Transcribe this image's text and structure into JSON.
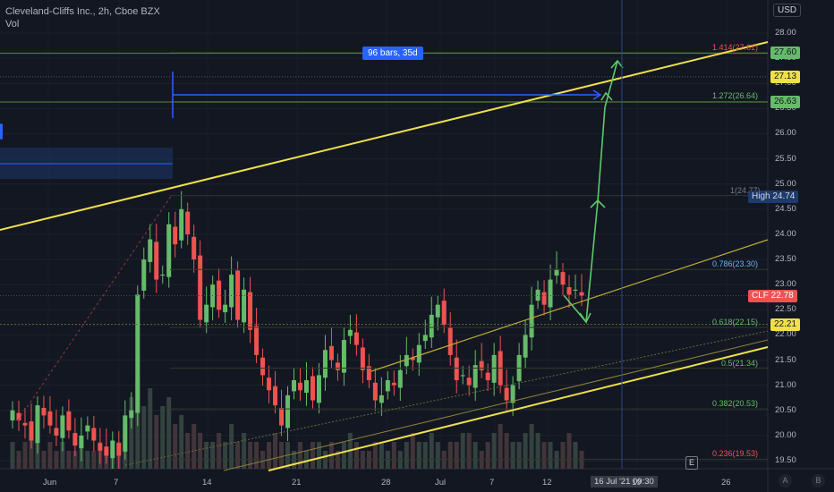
{
  "legend": {
    "symbol_line": "Cleveland-Cliffs Inc., 2h, Cboe BZX",
    "vol_line": "Vol"
  },
  "currency": "USD",
  "measure_badge": "96 bars, 35d",
  "e_marker": "E",
  "corner_buttons": [
    "A",
    "B"
  ],
  "crosshair_time": [
    "16 Jul '21",
    "09:30"
  ],
  "colors": {
    "background": "#131722",
    "up": "#26a69a",
    "up_vol": "#1e5d3a",
    "down": "#ef5350",
    "down_vol": "#6b2323",
    "channel": "#f0e04a",
    "fib_line": "#4c7a3a",
    "measure": "#2962ff",
    "arrow": "#5dc96a"
  },
  "price_tags": [
    {
      "label": "27.60",
      "price": 27.6,
      "bg": "#66bb6a",
      "fg": "#131722"
    },
    {
      "label": "27.13",
      "price": 27.13,
      "bg": "#f0e04a",
      "fg": "#131722"
    },
    {
      "label": "26.63",
      "price": 26.63,
      "bg": "#66bb6a",
      "fg": "#131722"
    },
    {
      "label": "High",
      "label2": "24.74",
      "price": 24.74,
      "bg": "#1e3a6e",
      "fg": "#d1d4dc"
    },
    {
      "label": "CLF",
      "label2": "22.78",
      "price": 22.78,
      "bg": "#ef5350",
      "fg": "#ffffff"
    },
    {
      "label": "22.21",
      "price": 22.21,
      "bg": "#f0e04a",
      "fg": "#131722"
    }
  ],
  "fib_levels": [
    {
      "label": "1.414(27.61)",
      "price": 27.61,
      "color": "#ef5350"
    },
    {
      "label": "1.272(26.64)",
      "price": 26.64,
      "color": "#66bb6a"
    },
    {
      "label": "1(24.77)",
      "price": 24.77,
      "color": "#787b86"
    },
    {
      "label": "0.786(23.30)",
      "price": 23.3,
      "color": "#64b5f6"
    },
    {
      "label": "0.618(22.15)",
      "price": 22.15,
      "color": "#66bb6a"
    },
    {
      "label": "0.5(21.34)",
      "price": 21.34,
      "color": "#66bb6a"
    },
    {
      "label": "0.382(20.53)",
      "price": 20.53,
      "color": "#66bb6a"
    },
    {
      "label": "0.236(19.53)",
      "price": 19.53,
      "color": "#ef5350"
    }
  ],
  "chart_data": {
    "type": "candlestick",
    "title": "Cleveland-Cliffs Inc., 2h, Cboe BZX",
    "y_axis_ticks": [
      "19.50",
      "20.00",
      "20.50",
      "21.00",
      "21.50",
      "22.00",
      "22.50",
      "23.00",
      "23.50",
      "24.00",
      "24.50",
      "25.00",
      "25.50",
      "26.00",
      "26.50",
      "27.00",
      "27.50",
      "28.00"
    ],
    "ylim": [
      19.4,
      28.4
    ],
    "x_axis_ticks": [
      "Jun",
      "7",
      "14",
      "21",
      "28",
      "Jul",
      "7",
      "12",
      "19",
      "26"
    ],
    "series": [
      {
        "name": "CLF",
        "close": [
          20.5,
          20.3,
          20.2,
          19.9,
          20.6,
          20.4,
          20.2,
          20.0,
          20.4,
          20.1,
          19.8,
          20.0,
          20.2,
          19.9,
          19.7,
          19.6,
          19.9,
          19.6,
          20.4,
          20.5,
          22.8,
          23.5,
          23.9,
          23.1,
          23.2,
          24.2,
          23.8,
          24.5,
          24.0,
          23.5,
          22.3,
          22.6,
          23.0,
          22.5,
          22.6,
          23.2,
          22.3,
          22.9,
          22.1,
          21.6,
          21.2,
          20.9,
          20.6,
          20.2,
          20.8,
          21.1,
          20.9,
          21.1,
          20.7,
          21.2,
          21.7,
          21.5,
          21.3,
          21.9,
          22.1,
          21.8,
          21.3,
          21.1,
          20.7,
          20.8,
          21.1,
          21.0,
          21.3,
          21.6,
          21.5,
          21.8,
          22.0,
          22.4,
          22.6,
          22.2,
          21.6,
          21.1,
          21.2,
          21.0,
          21.4,
          21.3,
          21.1,
          21.6,
          21.0,
          20.7,
          21.0,
          21.6,
          22.0,
          22.6,
          22.9,
          22.6,
          23.1,
          23.3,
          23.0,
          22.8,
          22.9,
          22.78
        ]
      },
      {
        "name": "Vol",
        "values": [
          3,
          2,
          3,
          4,
          3,
          2,
          3,
          2,
          3,
          2,
          2,
          3,
          2,
          2,
          3,
          2,
          2,
          3,
          5,
          8,
          10,
          7,
          9,
          6,
          7,
          8,
          5,
          6,
          4,
          5,
          4,
          3,
          3,
          4,
          3,
          5,
          3,
          4,
          3,
          3,
          2,
          3,
          4,
          3,
          3,
          2,
          3,
          2,
          3,
          3,
          2,
          3,
          2,
          3,
          4,
          3,
          2,
          2,
          3,
          3,
          2,
          3,
          2,
          3,
          4,
          3,
          3,
          4,
          3,
          2,
          3,
          3,
          4,
          4,
          3,
          2,
          3,
          4,
          5,
          4,
          3,
          3,
          4,
          5,
          4,
          3,
          3,
          2,
          3,
          4,
          3,
          2
        ]
      }
    ],
    "annotations": {
      "measure_label": "96 bars, 35d",
      "projection_target": 27.6
    }
  }
}
